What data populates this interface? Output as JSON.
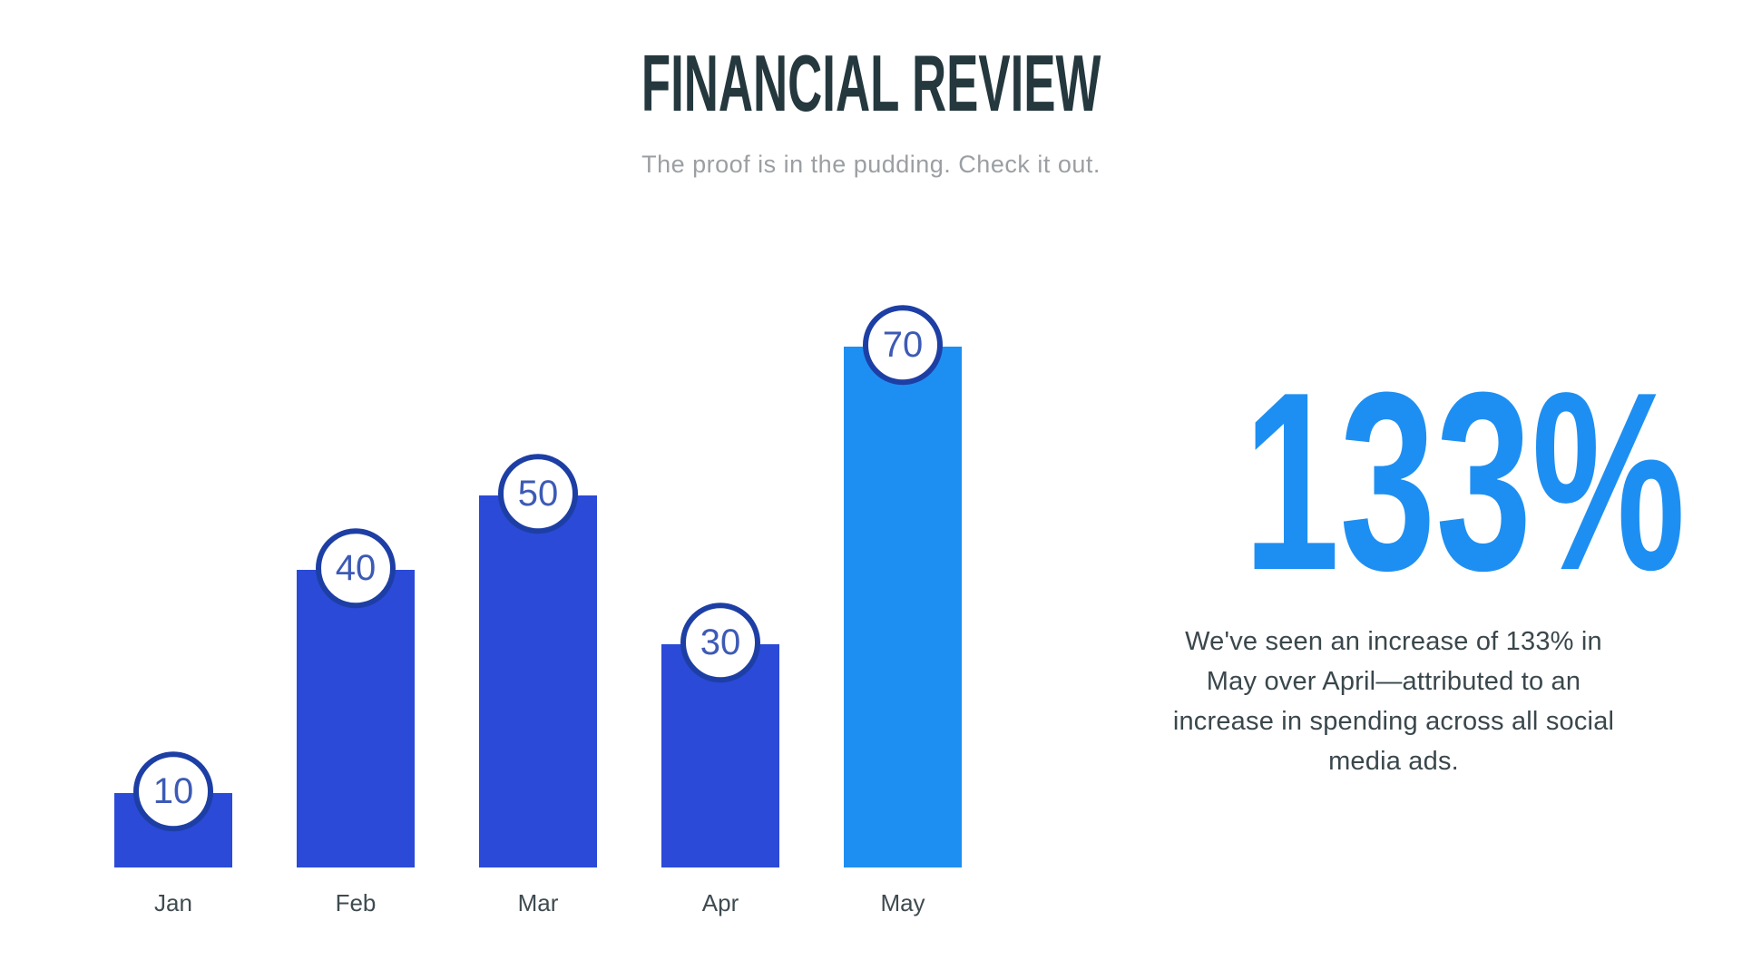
{
  "page": {
    "background": "#FFFFFF"
  },
  "header": {
    "title": "FINANCIAL REVIEW",
    "title_color": "#24383E",
    "subtitle": "The proof is in the pudding. Check it out.",
    "subtitle_color": "#9B9FA3"
  },
  "chart_data": {
    "type": "bar",
    "categories": [
      "Jan",
      "Feb",
      "Mar",
      "Apr",
      "May"
    ],
    "values": [
      10,
      40,
      50,
      30,
      70
    ],
    "title": "",
    "xlabel": "",
    "ylabel": "",
    "ylim": [
      0,
      70
    ],
    "grid": false,
    "axes_shown": false,
    "legend": "none",
    "bar_color": "#2A4AD7",
    "highlight_index": 4,
    "highlight_color": "#1E8FF2",
    "badge_fill": "#FFFFFF",
    "badge_border": "#1D3FA5",
    "badge_text_color": "#3D5AB5",
    "label_color": "#3F4B50"
  },
  "stat": {
    "value": "133%",
    "color": "#1E8FF2",
    "description": "We've seen an increase of 133% in May over April—attributed to an increase in spending across all social media ads.",
    "description_color": "#3A474C"
  }
}
